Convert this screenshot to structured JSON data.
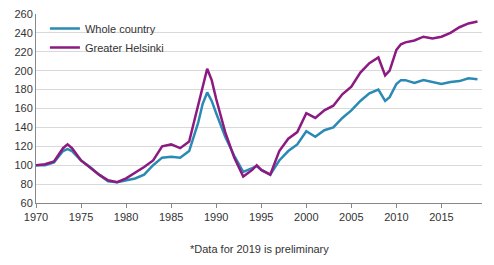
{
  "chart_data": {
    "type": "line",
    "x": [
      1970,
      1971,
      1972,
      1973,
      1973.5,
      1974,
      1975,
      1976,
      1977,
      1978,
      1979,
      1980,
      1981,
      1982,
      1983,
      1984,
      1985,
      1986,
      1987,
      1988,
      1988.5,
      1989,
      1989.5,
      1990,
      1991,
      1992,
      1993,
      1994,
      1994.5,
      1995,
      1996,
      1997,
      1998,
      1999,
      2000,
      2001,
      2002,
      2003,
      2004,
      2005,
      2006,
      2007,
      2008,
      2008.75,
      2009.25,
      2010,
      2010.5,
      2011,
      2012,
      2013,
      2014,
      2015,
      2016,
      2017,
      2018,
      2019
    ],
    "series": [
      {
        "name": "Whole country",
        "color": "#2a8ab4",
        "values": [
          100,
          100,
          103,
          115,
          117,
          115,
          105,
          98,
          90,
          83,
          82,
          84,
          86,
          90,
          100,
          108,
          109,
          108,
          115,
          145,
          165,
          177,
          168,
          155,
          130,
          110,
          93,
          97,
          99,
          95,
          90,
          105,
          115,
          122,
          136,
          130,
          137,
          140,
          150,
          158,
          168,
          176,
          180,
          168,
          172,
          186,
          190,
          190,
          187,
          190,
          188,
          186,
          188,
          189,
          192,
          191
        ]
      },
      {
        "name": "Greater Helsinki",
        "color": "#8c1a80",
        "values": [
          100,
          101,
          104,
          118,
          122,
          118,
          105,
          97,
          90,
          84,
          82,
          86,
          92,
          98,
          105,
          120,
          122,
          118,
          125,
          165,
          185,
          202,
          190,
          170,
          135,
          108,
          88,
          95,
          100,
          95,
          90,
          115,
          128,
          135,
          155,
          150,
          158,
          163,
          175,
          183,
          198,
          208,
          214,
          195,
          200,
          222,
          228,
          230,
          232,
          236,
          234,
          236,
          240,
          246,
          250,
          252
        ]
      }
    ],
    "xlim": [
      1970,
      2019.5
    ],
    "xticks": [
      1970,
      1975,
      1980,
      1985,
      1990,
      1995,
      2000,
      2005,
      2010,
      2015
    ],
    "ylim": [
      60,
      260
    ],
    "yticks": [
      60,
      80,
      100,
      120,
      140,
      160,
      180,
      200,
      220,
      240,
      260
    ],
    "grid": true,
    "legend": "top-left",
    "annotations": [
      "*Data for 2019 is preliminary"
    ]
  }
}
